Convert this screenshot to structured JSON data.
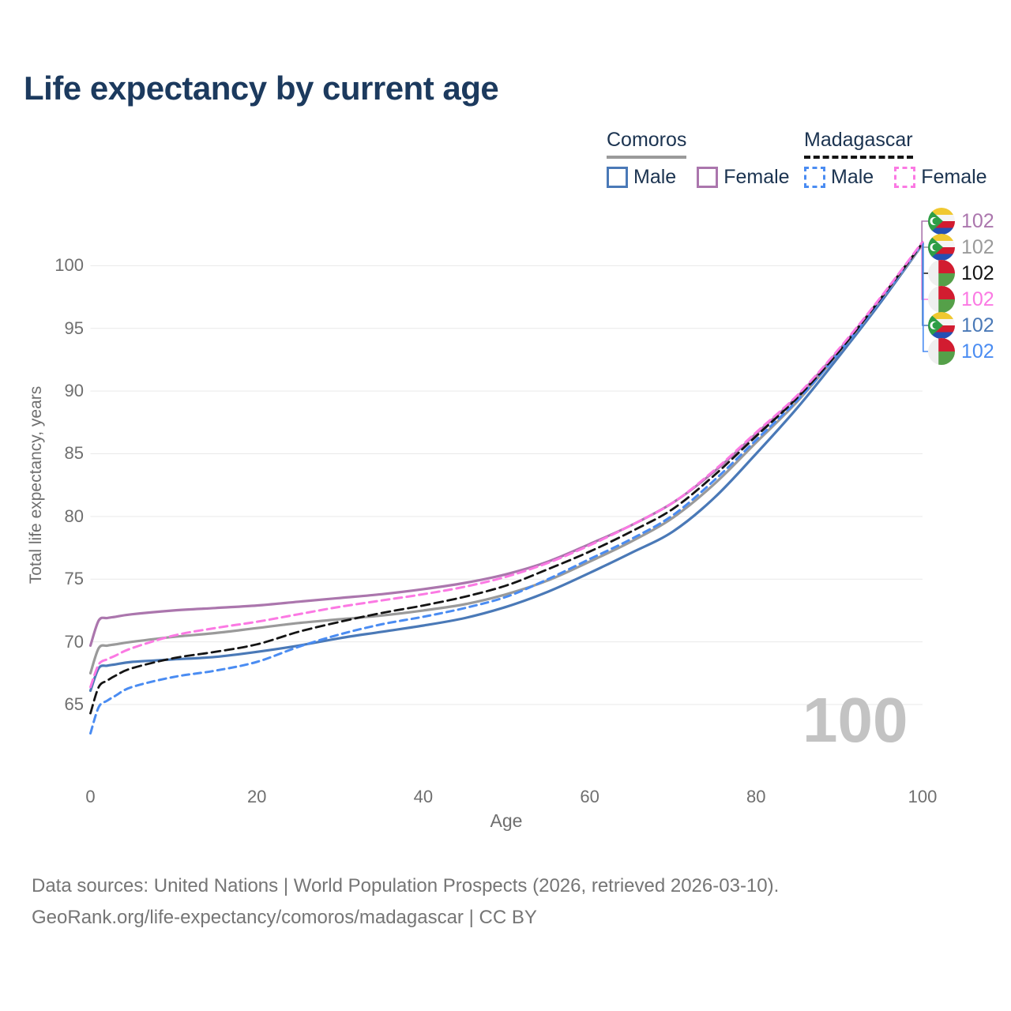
{
  "title": "Life expectancy by current age",
  "watermark": "100",
  "legend": {
    "groups": [
      {
        "name": "Comoros",
        "line_style": "solid",
        "underline_color": "#9a9a9a",
        "items": [
          {
            "label": "Male",
            "series": "comoros_male",
            "color": "#4a79b7"
          },
          {
            "label": "Female",
            "series": "comoros_female",
            "color": "#ab76ad"
          }
        ]
      },
      {
        "name": "Madagascar",
        "line_style": "dashed",
        "underline_color": "#141414",
        "items": [
          {
            "label": "Male",
            "series": "madagascar_male",
            "color": "#4a8cf2"
          },
          {
            "label": "Female",
            "series": "madagascar_female",
            "color": "#fb79e3"
          }
        ]
      }
    ]
  },
  "chart_data": {
    "type": "line",
    "title": "Life expectancy by current age",
    "xlabel": "Age",
    "ylabel": "Total life expectancy, years",
    "x_ticks": [
      0,
      20,
      40,
      60,
      80,
      100
    ],
    "y_ticks": [
      65,
      70,
      75,
      80,
      85,
      90,
      95,
      100
    ],
    "xlim": [
      0,
      100
    ],
    "ylim": [
      62,
      103
    ],
    "grid": true,
    "legend_position": "top-right",
    "x": [
      0,
      1,
      2,
      3,
      5,
      10,
      15,
      20,
      25,
      30,
      35,
      40,
      45,
      50,
      55,
      60,
      65,
      70,
      75,
      80,
      85,
      90,
      95,
      100
    ],
    "series": [
      {
        "id": "comoros_male",
        "name": "Comoros Male",
        "color": "#4a79b7",
        "dash": "solid",
        "width": 3.2,
        "values": [
          66.1,
          67.9,
          68.1,
          68.2,
          68.4,
          68.6,
          68.8,
          69.2,
          69.7,
          70.3,
          70.8,
          71.3,
          71.9,
          72.8,
          74.0,
          75.5,
          77.1,
          78.8,
          81.5,
          85.0,
          88.7,
          92.8,
          97.1,
          101.7
        ]
      },
      {
        "id": "comoros_all",
        "name": "Comoros Both sexes",
        "color": "#9a9a9a",
        "dash": "solid",
        "width": 3.2,
        "values": [
          67.5,
          69.5,
          69.7,
          69.8,
          70.0,
          70.4,
          70.7,
          71.1,
          71.5,
          71.8,
          72.1,
          72.5,
          73.0,
          73.8,
          74.9,
          76.4,
          78.0,
          79.9,
          82.6,
          85.9,
          89.2,
          93.1,
          97.3,
          101.7
        ]
      },
      {
        "id": "comoros_female",
        "name": "Comoros Female",
        "color": "#ab76ad",
        "dash": "solid",
        "width": 3.2,
        "values": [
          69.7,
          71.7,
          71.9,
          72.0,
          72.2,
          72.5,
          72.7,
          72.9,
          73.2,
          73.5,
          73.8,
          74.2,
          74.7,
          75.4,
          76.4,
          77.8,
          79.3,
          81.1,
          83.6,
          86.6,
          89.6,
          93.3,
          97.4,
          101.8
        ]
      },
      {
        "id": "madagascar_male",
        "name": "Madagascar Male",
        "color": "#4a8cf2",
        "dash": "9 6",
        "width": 3,
        "values": [
          62.7,
          64.8,
          65.3,
          65.7,
          66.4,
          67.2,
          67.7,
          68.4,
          69.6,
          70.6,
          71.4,
          72.0,
          72.7,
          73.6,
          75.0,
          76.6,
          78.2,
          80.1,
          82.9,
          86.1,
          89.3,
          93.1,
          97.3,
          101.8
        ]
      },
      {
        "id": "madagascar_all",
        "name": "Madagascar Both sexes",
        "color": "#141414",
        "dash": "11 6",
        "width": 2.8,
        "values": [
          64.3,
          66.4,
          66.9,
          67.3,
          67.9,
          68.7,
          69.2,
          69.8,
          70.8,
          71.6,
          72.3,
          72.9,
          73.6,
          74.5,
          75.8,
          77.2,
          78.8,
          80.6,
          83.3,
          86.4,
          89.5,
          93.2,
          97.4,
          101.8
        ]
      },
      {
        "id": "madagascar_female",
        "name": "Madagascar Female",
        "color": "#fb79e3",
        "dash": "10 6",
        "width": 3,
        "values": [
          66.4,
          68.2,
          68.6,
          68.9,
          69.5,
          70.5,
          71.1,
          71.6,
          72.2,
          72.8,
          73.3,
          73.8,
          74.4,
          75.2,
          76.3,
          77.7,
          79.3,
          81.1,
          83.7,
          86.7,
          89.7,
          93.4,
          97.5,
          101.9
        ]
      }
    ]
  },
  "endpoint_labels": [
    {
      "value": "102",
      "color": "#ab76ad",
      "flag": "comoros",
      "series": "comoros_female"
    },
    {
      "value": "102",
      "color": "#9a9a9a",
      "flag": "comoros",
      "series": "comoros_all"
    },
    {
      "value": "102",
      "color": "#141414",
      "flag": "madagascar",
      "series": "madagascar_all"
    },
    {
      "value": "102",
      "color": "#fb79e3",
      "flag": "madagascar",
      "series": "madagascar_female"
    },
    {
      "value": "102",
      "color": "#4a79b7",
      "flag": "comoros",
      "series": "comoros_male"
    },
    {
      "value": "102",
      "color": "#4a8cf2",
      "flag": "madagascar",
      "series": "madagascar_male"
    }
  ],
  "footer": {
    "line1": "Data sources: United Nations | World Population Prospects (2026, retrieved 2026-03-10).",
    "line2": "GeoRank.org/life-expectancy/comoros/madagascar | CC BY"
  }
}
